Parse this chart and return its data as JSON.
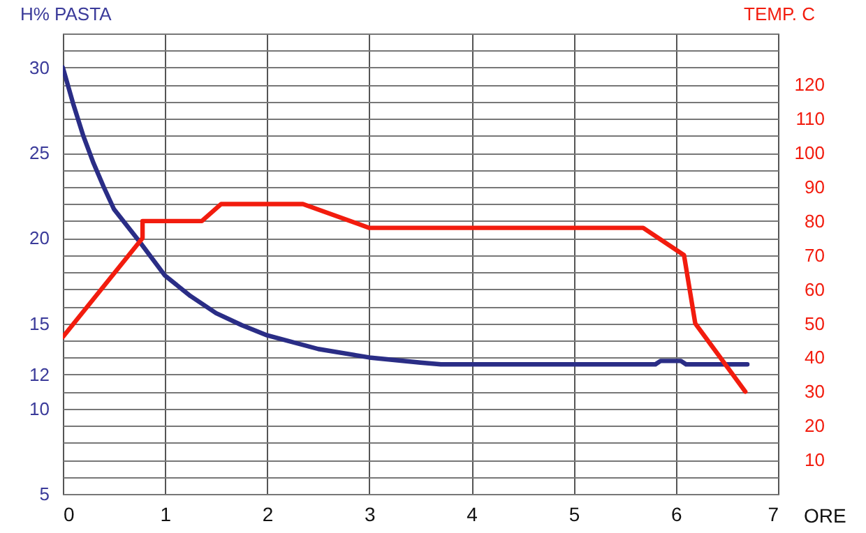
{
  "chart_data": {
    "type": "line",
    "xlabel": "ORE",
    "ylabel": "H% PASTA",
    "y2label": "TEMP. C",
    "xlim": [
      0,
      7
    ],
    "xticks": [
      0,
      1,
      2,
      3,
      4,
      5,
      6,
      7
    ],
    "ylim": [
      5,
      32
    ],
    "yticks": [
      5,
      {
        "value": 6,
        "label": null
      },
      {
        "value": 7,
        "label": null
      },
      {
        "value": 8,
        "label": null
      },
      {
        "value": 9,
        "label": null
      },
      10,
      {
        "value": 11,
        "label": null
      },
      12,
      {
        "value": 13,
        "label": null
      },
      {
        "value": 14,
        "label": null
      },
      15,
      {
        "value": 16,
        "label": null
      },
      {
        "value": 17,
        "label": null
      },
      {
        "value": 18,
        "label": null
      },
      {
        "value": 19,
        "label": null
      },
      20,
      {
        "value": 21,
        "label": null
      },
      {
        "value": 22,
        "label": null
      },
      {
        "value": 23,
        "label": null
      },
      {
        "value": 24,
        "label": null
      },
      25,
      {
        "value": 26,
        "label": null
      },
      {
        "value": 27,
        "label": null
      },
      {
        "value": 28,
        "label": null
      },
      {
        "value": 29,
        "label": null
      },
      30,
      {
        "value": 31,
        "label": null
      },
      {
        "value": 32,
        "label": null
      }
    ],
    "y2lim": [
      0,
      135
    ],
    "y2ticks": [
      10,
      20,
      30,
      40,
      50,
      60,
      70,
      80,
      90,
      100,
      110,
      120
    ],
    "grid": true,
    "marker": "none",
    "line_style": "solid",
    "series": [
      {
        "color": "#2a2d86",
        "x": [
          0,
          0.1,
          0.2,
          0.3,
          0.4,
          0.5,
          0.75,
          1,
          1.25,
          1.5,
          1.75,
          2,
          2.5,
          3,
          3.5,
          3.7,
          4,
          5,
          5.8,
          5.85,
          6.05,
          6.1,
          6.7
        ],
        "values": [
          30,
          27.9,
          26,
          24.4,
          23,
          21.7,
          19.8,
          17.8,
          16.6,
          15.6,
          14.9,
          14.3,
          13.5,
          13,
          12.7,
          12.6,
          12.6,
          12.6,
          12.6,
          12.8,
          12.8,
          12.6,
          12.6
        ]
      },
      {
        "color": "#f21c0e",
        "axis": "y2",
        "x": [
          0,
          0.78,
          0.78,
          1.36,
          1.55,
          2.35,
          3,
          5.68,
          6.08,
          6.19,
          6.68
        ],
        "values": [
          46,
          75,
          80,
          80,
          85,
          85,
          78,
          78,
          70,
          50,
          30
        ]
      }
    ]
  }
}
